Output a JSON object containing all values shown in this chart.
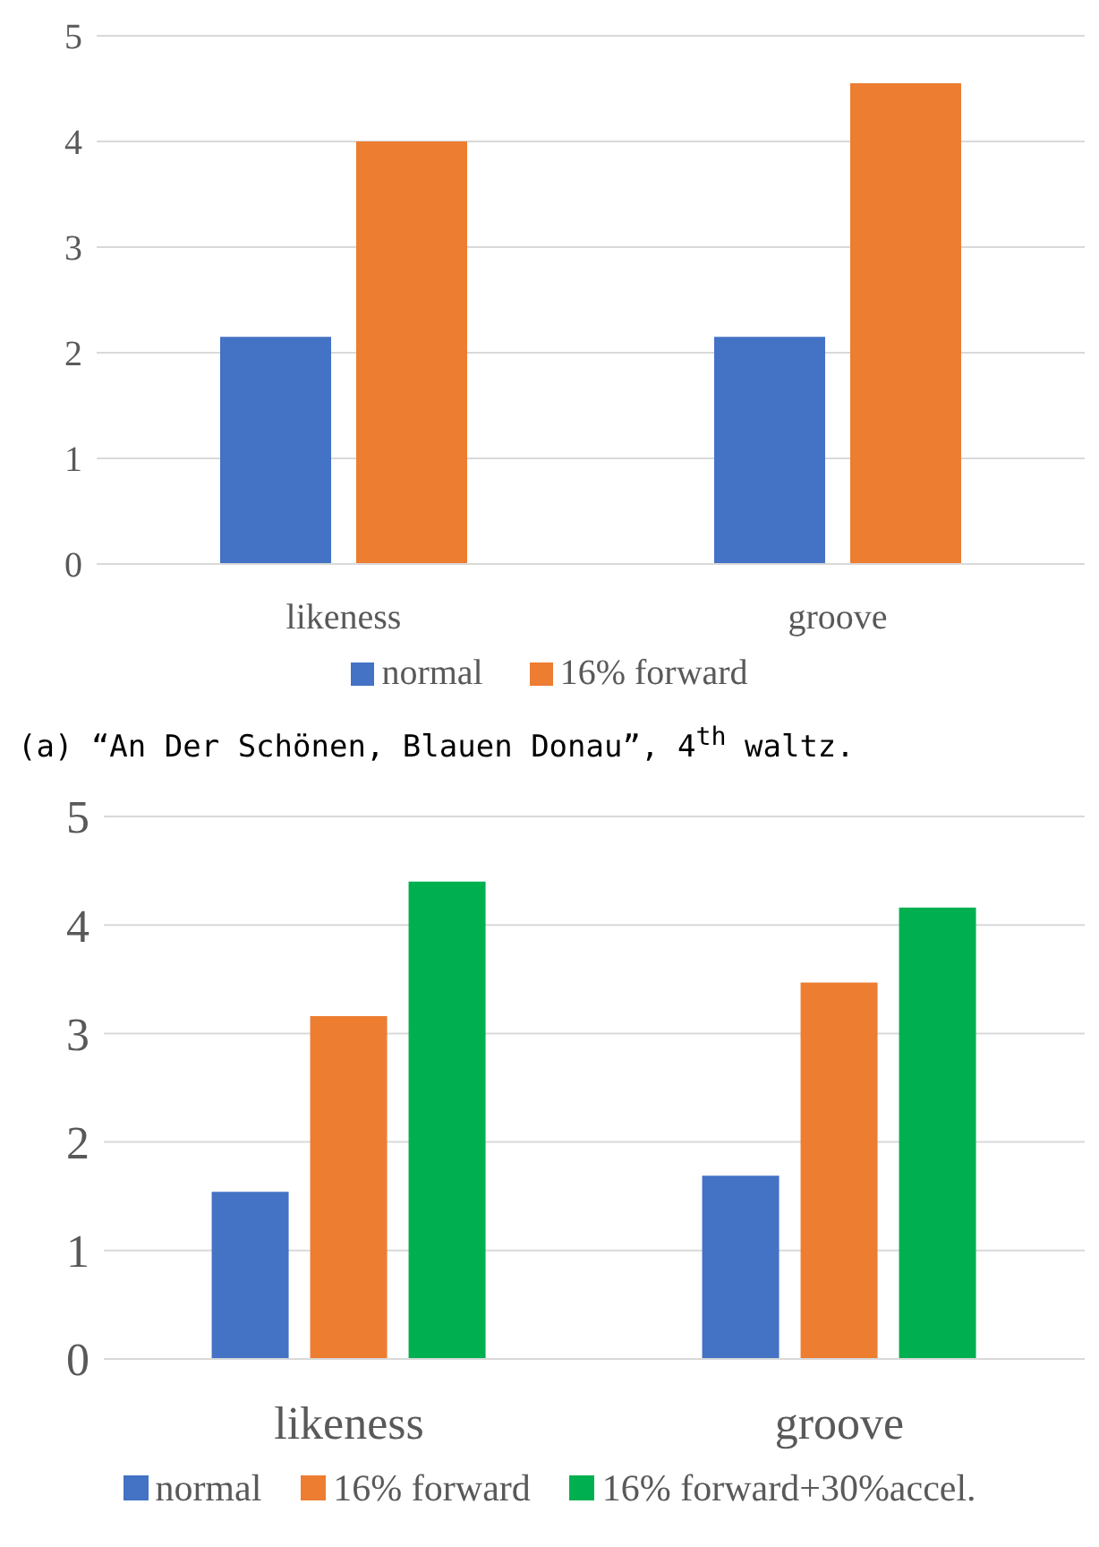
{
  "chart_data": [
    {
      "type": "bar",
      "categories": [
        "likeness",
        "groove"
      ],
      "series": [
        {
          "name": "normal",
          "color": "#4472c4",
          "values": [
            2.15,
            2.15
          ]
        },
        {
          "name": "16% forward",
          "color": "#ed7d31",
          "values": [
            4.0,
            4.55
          ]
        }
      ],
      "ylim": [
        0,
        5
      ],
      "yticks": [
        0,
        1,
        2,
        3,
        4,
        5
      ],
      "grid": "y",
      "legend": "bottom",
      "annotations": [
        "(a)  “An Der Schönen, Blauen Donau”, 4$^{th}$ waltz."
      ]
    },
    {
      "type": "bar",
      "categories": [
        "likeness",
        "groove"
      ],
      "series": [
        {
          "name": "normal",
          "color": "#4472c4",
          "values": [
            1.54,
            1.69
          ]
        },
        {
          "name": "16% forward",
          "color": "#ed7d31",
          "values": [
            3.16,
            3.47
          ]
        },
        {
          "name": "16% forward+30%accel.",
          "color": "#00b050",
          "values": [
            4.4,
            4.16
          ]
        }
      ],
      "ylim": [
        0,
        5
      ],
      "yticks": [
        0,
        1,
        2,
        3,
        4,
        5
      ],
      "grid": "y",
      "legend": "bottom"
    }
  ]
}
